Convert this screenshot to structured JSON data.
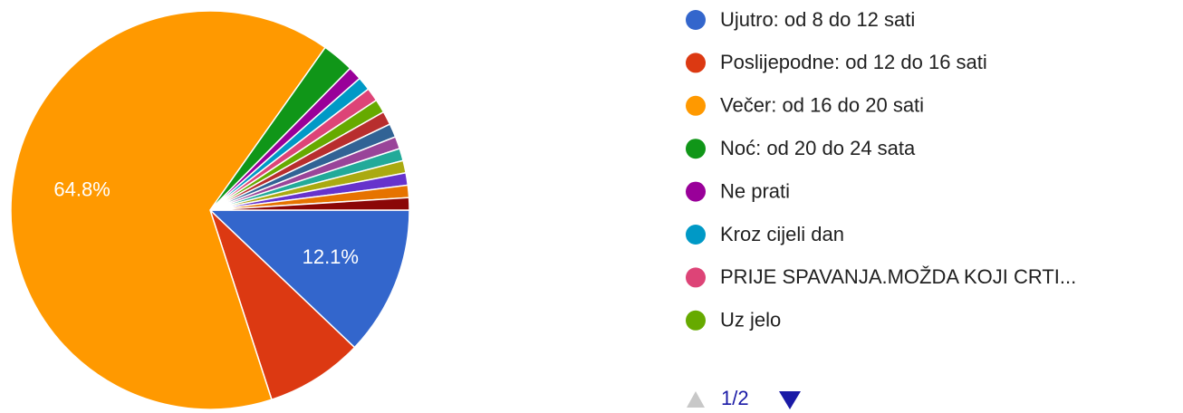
{
  "chart_data": {
    "type": "pie",
    "categories": [
      "Ujutro: od 8 do 12 sati",
      "Poslijepodne: od 12 do 16 sati",
      "Večer: od 16 do 20 sati",
      "Noć: od 20 do 24 sata",
      "Ne prati",
      "Kroz cijeli dan",
      "PRIJE SPAVANJA.MOŽDA KOJI CRTI...",
      "Uz jelo",
      null,
      null,
      null,
      null,
      null,
      null,
      null,
      null
    ],
    "values": [
      12.1,
      7.9,
      64.8,
      2.6,
      1.1,
      1.1,
      1.1,
      1.1,
      1.1,
      1.1,
      1.0,
      1.0,
      1.0,
      1.0,
      1.0,
      1.0
    ],
    "value_labels": [
      "12.1%",
      null,
      "64.8%",
      null,
      null,
      null,
      null,
      null,
      null,
      null,
      null,
      null,
      null,
      null,
      null,
      null
    ],
    "colors": [
      "#3366cc",
      "#dc3912",
      "#ff9900",
      "#109618",
      "#990099",
      "#0099c6",
      "#dd4477",
      "#66aa00",
      "#b82e2e",
      "#316395",
      "#994499",
      "#22aa99",
      "#aaaa11",
      "#6633cc",
      "#e67300",
      "#8b0707"
    ],
    "legend_page": "1/2"
  }
}
